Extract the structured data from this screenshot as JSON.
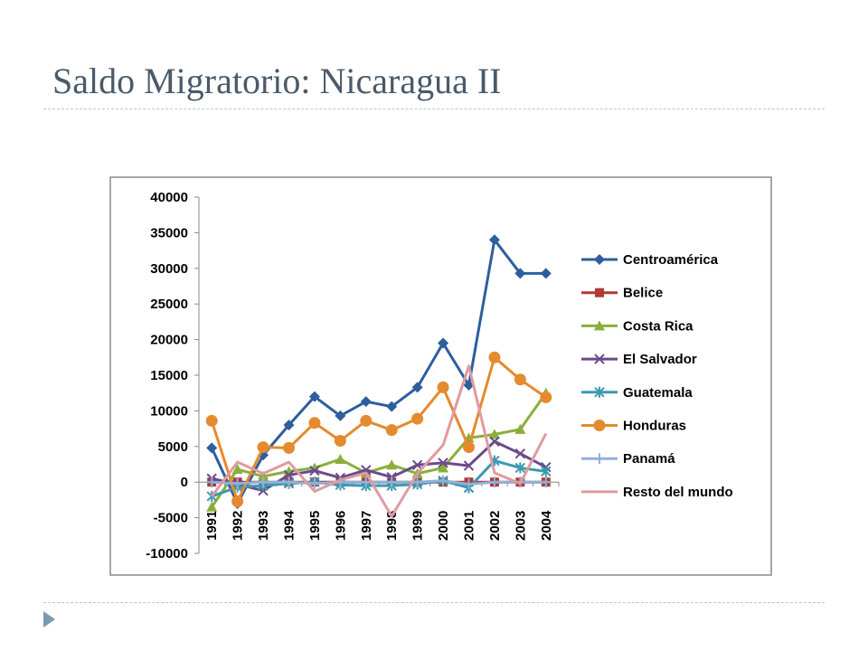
{
  "slide": {
    "title": "Saldo Migratorio: Nicaragua II"
  },
  "chart_data": {
    "type": "line",
    "title": "",
    "xlabel": "",
    "ylabel": "",
    "ylim": [
      -10000,
      40000
    ],
    "ytick_step": 5000,
    "grid": false,
    "legend_position": "right",
    "x": [
      "1991",
      "1992",
      "1993",
      "1994",
      "1995",
      "1996",
      "1997",
      "1998",
      "1999",
      "2000",
      "2001",
      "2002",
      "2003",
      "2004"
    ],
    "series": [
      {
        "name": "Centroamérica",
        "color": "#2e5e9e",
        "marker": "diamond",
        "values": [
          4800,
          -3000,
          3800,
          8000,
          12000,
          9300,
          11300,
          10600,
          13300,
          19500,
          13600,
          34000,
          29300,
          29300
        ]
      },
      {
        "name": "Belice",
        "color": "#b03a35",
        "marker": "square",
        "values": [
          0,
          0,
          0,
          0,
          0,
          0,
          0,
          0,
          0,
          0,
          0,
          0,
          0,
          0
        ]
      },
      {
        "name": "Costa Rica",
        "color": "#8aaf3c",
        "marker": "triangle",
        "values": [
          -3500,
          1800,
          800,
          1500,
          2000,
          3200,
          1300,
          2400,
          1200,
          2000,
          6200,
          6700,
          7400,
          12500
        ]
      },
      {
        "name": "El Salvador",
        "color": "#6a4a8c",
        "marker": "x",
        "values": [
          500,
          -300,
          -1200,
          1000,
          1600,
          600,
          1700,
          700,
          2400,
          2700,
          2300,
          5700,
          4000,
          2100
        ]
      },
      {
        "name": "Guatemala",
        "color": "#3a9ab0",
        "marker": "star",
        "values": [
          -2000,
          -700,
          -500,
          -200,
          0,
          -400,
          -500,
          -500,
          -300,
          200,
          -800,
          3000,
          2000,
          1500
        ]
      },
      {
        "name": "Honduras",
        "color": "#e58a2e",
        "marker": "circle",
        "values": [
          8600,
          -2700,
          4900,
          4800,
          8300,
          5800,
          8600,
          7300,
          8900,
          13300,
          4900,
          17500,
          14400,
          11900
        ]
      },
      {
        "name": "Panamá",
        "color": "#90b0d8",
        "marker": "plus",
        "values": [
          0,
          -200,
          0,
          0,
          -200,
          0,
          0,
          0,
          0,
          200,
          -300,
          0,
          0,
          0
        ]
      },
      {
        "name": "Resto del mundo",
        "color": "#e09aa0",
        "marker": "none",
        "values": [
          -2000,
          2800,
          1200,
          2800,
          -1300,
          300,
          1300,
          -4800,
          1200,
          5200,
          16300,
          1300,
          -200,
          6800
        ]
      }
    ]
  }
}
